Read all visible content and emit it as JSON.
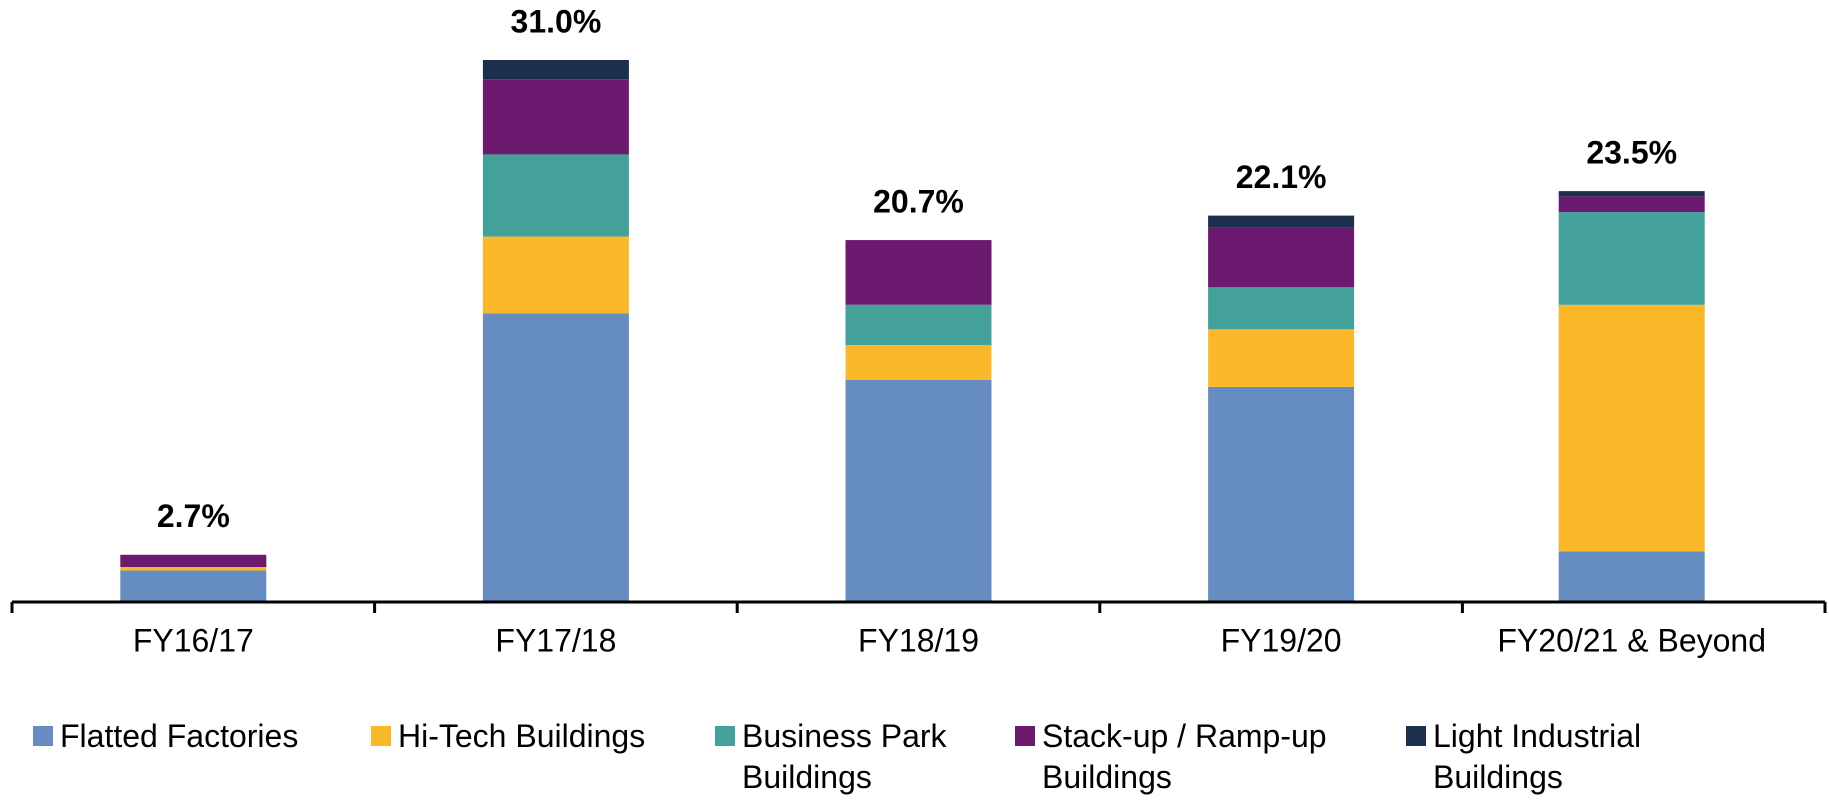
{
  "chart_data": {
    "type": "stacked_bar",
    "categories": [
      "FY16/17",
      "FY17/18",
      "FY18/19",
      "FY19/20",
      "FY20/21 & Beyond"
    ],
    "series": [
      {
        "name": "Flatted Factories",
        "color": "#658dc1",
        "values": [
          1.8,
          16.5,
          12.7,
          12.3,
          2.9
        ]
      },
      {
        "name": "Hi-Tech Buildings",
        "color": "#fbb829",
        "values": [
          0.2,
          4.4,
          2.0,
          3.3,
          14.1
        ]
      },
      {
        "name": "Business Park Buildings",
        "color": "#44a19a",
        "values": [
          0.0,
          4.7,
          2.3,
          2.4,
          5.3
        ]
      },
      {
        "name": "Stack-up / Ramp-up Buildings",
        "color": "#6b1a6f",
        "values": [
          0.7,
          4.3,
          3.7,
          3.4,
          0.9
        ]
      },
      {
        "name": "Light Industrial Buildings",
        "color": "#1c2f4c",
        "values": [
          0.0,
          1.1,
          0.0,
          0.7,
          0.3
        ]
      }
    ],
    "totals": [
      2.7,
      31.0,
      20.7,
      22.1,
      23.5
    ],
    "total_labels": [
      "2.7%",
      "31.0%",
      "20.7%",
      "22.1%",
      "23.5%"
    ]
  }
}
